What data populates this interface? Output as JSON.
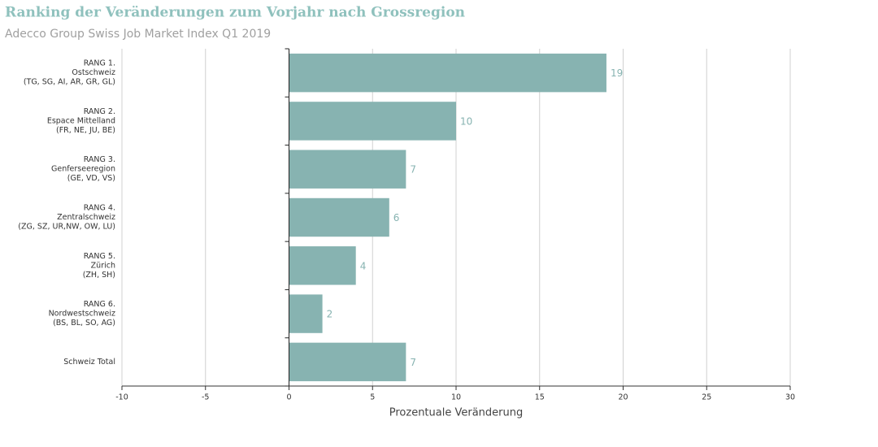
{
  "chart_data": {
    "type": "hbar",
    "title": "Ranking der Veränderungen zum Vorjahr nach Grossregion",
    "subtitle": "Adecco Group Swiss Job Market Index Q1 2019",
    "x_label": "Prozentuale Veränderung",
    "categories": [
      [
        "RANG 1.",
        "Ostschweiz",
        "(TG, SG, AI, AR, GR, GL)"
      ],
      [
        "RANG 2.",
        "Espace Mittelland",
        "(FR, NE, JU, BE)"
      ],
      [
        "RANG 3.",
        "Genferseeregion",
        "(GE, VD, VS)"
      ],
      [
        "RANG 4.",
        "Zentralschweiz",
        "(ZG, SZ, UR,NW, OW, LU)"
      ],
      [
        "RANG 5.",
        "Zürich",
        "(ZH, SH)"
      ],
      [
        "RANG 6.",
        "Nordwestschweiz",
        "(BS, BL, SO, AG)"
      ],
      [
        "Schweiz Total"
      ]
    ],
    "values": [
      19,
      10,
      7,
      6,
      4,
      2,
      7
    ],
    "color": "#87b3b1",
    "xlim": [
      -10,
      30
    ],
    "xticks": [
      -10,
      -5,
      0,
      5,
      10,
      15,
      20,
      25,
      30
    ],
    "grid": true
  }
}
